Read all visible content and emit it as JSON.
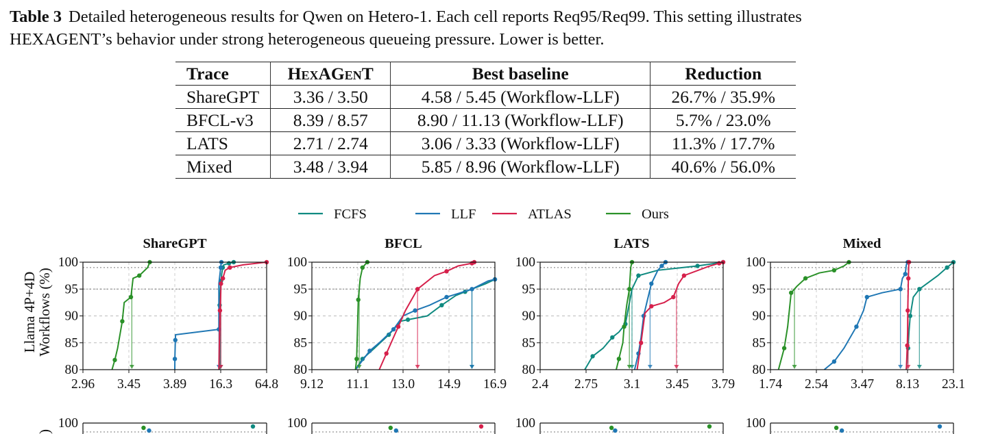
{
  "caption": {
    "label": "Table 3",
    "text": "Detailed heterogeneous results for Qwen on Hetero-1. Each cell reports Req95/Req99. This setting illustrates",
    "line2_prefix": "H",
    "line2_sc": "EXAG",
    "line2_mid": "EN",
    "line2_rest": "T’s behavior under strong heterogeneous queueing pressure. Lower is better."
  },
  "table": {
    "headers": [
      "Trace",
      "HexAGenT",
      "Best baseline",
      "Reduction"
    ],
    "rows": [
      [
        "ShareGPT",
        "3.36 / 3.50",
        "4.58 / 5.45 (Workflow-LLF)",
        "26.7% / 35.9%"
      ],
      [
        "BFCL-v3",
        "8.39 / 8.57",
        "8.90 / 11.13 (Workflow-LLF)",
        "5.7% / 23.0%"
      ],
      [
        "LATS",
        "2.71 / 2.74",
        "3.06 / 3.33 (Workflow-LLF)",
        "11.3% / 17.7%"
      ],
      [
        "Mixed",
        "3.48 / 3.94",
        "5.85 / 8.96 (Workflow-LLF)",
        "40.6% / 56.0%"
      ]
    ]
  },
  "legend": [
    {
      "name": "FCFS",
      "color": "#0f8a80"
    },
    {
      "name": "LLF",
      "color": "#1f77b4"
    },
    {
      "name": "ATLAS",
      "color": "#d6204b"
    },
    {
      "name": "Ours",
      "color": "#2a9128"
    }
  ],
  "ylabel_line1": "Llama 4P+4D",
  "ylabel_line2": "Workflows (%)",
  "chart_data": [
    {
      "type": "line",
      "title": "ShareGPT",
      "ylabel": "Llama 4P+4D Workflows (%)",
      "xticks": [
        "2.96",
        "3.45",
        "3.89",
        "16.3",
        "64.8"
      ],
      "yticks": [
        "80",
        "85",
        "90",
        "95",
        "100"
      ],
      "ylim": [
        80,
        100
      ],
      "x_axis": "broken (piecewise tick positions)",
      "series": [
        {
          "name": "FCFS",
          "points": [
            [
              16.0,
              80
            ],
            [
              16.0,
              92
            ],
            [
              16.1,
              94
            ],
            [
              16.6,
              96.5
            ],
            [
              17.5,
              98
            ],
            [
              18.5,
              99
            ],
            [
              19.6,
              99.5
            ],
            [
              25.0,
              99.8
            ],
            [
              30.0,
              100
            ]
          ]
        },
        {
          "name": "LLF",
          "points": [
            [
              3.89,
              80
            ],
            [
              3.91,
              82
            ],
            [
              4.0,
              84.5
            ],
            [
              4.03,
              85.5
            ],
            [
              4.1,
              86.5
            ],
            [
              15.8,
              87.5
            ],
            [
              15.8,
              96
            ],
            [
              16.3,
              99
            ],
            [
              16.7,
              99.8
            ],
            [
              17.0,
              100
            ]
          ]
        },
        {
          "name": "ATLAS",
          "points": [
            [
              15.8,
              80
            ],
            [
              16.1,
              91
            ],
            [
              16.3,
              94
            ],
            [
              16.6,
              96
            ],
            [
              17.3,
              96.5
            ],
            [
              18.6,
              97
            ],
            [
              21.0,
              98.5
            ],
            [
              26.0,
              99
            ],
            [
              40.0,
              99.5
            ],
            [
              64.8,
              100
            ]
          ]
        },
        {
          "name": "Ours",
          "points": [
            [
              3.27,
              80
            ],
            [
              3.3,
              81.8
            ],
            [
              3.33,
              84
            ],
            [
              3.38,
              89
            ],
            [
              3.4,
              92.5
            ],
            [
              3.47,
              93.5
            ],
            [
              3.49,
              97
            ],
            [
              3.55,
              97.5
            ],
            [
              3.63,
              99
            ],
            [
              3.65,
              100
            ]
          ]
        }
      ]
    },
    {
      "type": "line",
      "title": "BFCL",
      "xticks": [
        "9.12",
        "11.1",
        "13.0",
        "14.9",
        "16.9"
      ],
      "yticks": [
        "80",
        "85",
        "90",
        "95",
        "100"
      ],
      "ylim": [
        80,
        100
      ],
      "series": [
        {
          "name": "FCFS",
          "points": [
            [
              11.0,
              80
            ],
            [
              11.3,
              82
            ],
            [
              11.8,
              84
            ],
            [
              12.4,
              86.5
            ],
            [
              12.9,
              89
            ],
            [
              13.2,
              89.3
            ],
            [
              14.0,
              90
            ],
            [
              14.6,
              92
            ],
            [
              15.2,
              93.8
            ],
            [
              15.6,
              94.5
            ],
            [
              16.5,
              96
            ],
            [
              16.9,
              96.8
            ]
          ]
        },
        {
          "name": "LLF",
          "points": [
            [
              11.0,
              80
            ],
            [
              11.6,
              83.5
            ],
            [
              12.0,
              85
            ],
            [
              12.6,
              87.5
            ],
            [
              13.0,
              90
            ],
            [
              13.5,
              91
            ],
            [
              14.1,
              92
            ],
            [
              14.8,
              93.5
            ],
            [
              15.4,
              94.3
            ],
            [
              15.9,
              95
            ],
            [
              16.6,
              96.5
            ],
            [
              16.9,
              96.8
            ]
          ]
        },
        {
          "name": "ATLAS",
          "points": [
            [
              12.0,
              80
            ],
            [
              12.3,
              83
            ],
            [
              12.6,
              86
            ],
            [
              12.8,
              88
            ],
            [
              13.1,
              91
            ],
            [
              13.6,
              95
            ],
            [
              14.3,
              97.5
            ],
            [
              14.8,
              98.3
            ],
            [
              15.3,
              99.3
            ],
            [
              15.9,
              99.8
            ],
            [
              16.0,
              100
            ]
          ]
        },
        {
          "name": "Ours",
          "points": [
            [
              11.0,
              80
            ],
            [
              11.05,
              82
            ],
            [
              11.08,
              86.5
            ],
            [
              11.12,
              93
            ],
            [
              11.2,
              97
            ],
            [
              11.3,
              99
            ],
            [
              11.45,
              99.8
            ],
            [
              11.5,
              100
            ]
          ]
        }
      ]
    },
    {
      "type": "line",
      "title": "LATS",
      "xticks": [
        "2.4",
        "2.75",
        "3.1",
        "3.45",
        "3.79"
      ],
      "yticks": [
        "80",
        "85",
        "90",
        "95",
        "100"
      ],
      "ylim": [
        80,
        100
      ],
      "series": [
        {
          "name": "FCFS",
          "points": [
            [
              2.74,
              80
            ],
            [
              2.8,
              82.5
            ],
            [
              2.88,
              84
            ],
            [
              2.95,
              86
            ],
            [
              3.0,
              87
            ],
            [
              3.05,
              88.5
            ],
            [
              3.1,
              95
            ],
            [
              3.15,
              97.5
            ],
            [
              3.3,
              98.5
            ],
            [
              3.6,
              99.3
            ],
            [
              3.79,
              100
            ]
          ]
        },
        {
          "name": "LLF",
          "points": [
            [
              3.12,
              80
            ],
            [
              3.15,
              83
            ],
            [
              3.17,
              86
            ],
            [
              3.19,
              90
            ],
            [
              3.22,
              93
            ],
            [
              3.25,
              96
            ],
            [
              3.3,
              98.5
            ],
            [
              3.33,
              99.3
            ],
            [
              3.36,
              100
            ]
          ]
        },
        {
          "name": "ATLAS",
          "points": [
            [
              3.14,
              80
            ],
            [
              3.17,
              85
            ],
            [
              3.2,
              90.5
            ],
            [
              3.25,
              91.8
            ],
            [
              3.35,
              92.5
            ],
            [
              3.42,
              93.5
            ],
            [
              3.46,
              96
            ],
            [
              3.5,
              97.5
            ],
            [
              3.68,
              99.2
            ],
            [
              3.76,
              99.8
            ],
            [
              3.79,
              100
            ]
          ]
        },
        {
          "name": "Ours",
          "points": [
            [
              2.98,
              80
            ],
            [
              3.0,
              82
            ],
            [
              3.03,
              85
            ],
            [
              3.04,
              88
            ],
            [
              3.06,
              92
            ],
            [
              3.08,
              95
            ],
            [
              3.09,
              99
            ],
            [
              3.1,
              100
            ]
          ]
        }
      ]
    },
    {
      "type": "line",
      "title": "Mixed",
      "xticks": [
        "1.74",
        "2.54",
        "3.47",
        "8.13",
        "23.1"
      ],
      "yticks": [
        "80",
        "85",
        "90",
        "95",
        "100"
      ],
      "ylim": [
        80,
        100
      ],
      "x_axis": "broken (piecewise tick positions)",
      "series": [
        {
          "name": "FCFS",
          "points": [
            [
              8.0,
              80
            ],
            [
              8.3,
              84
            ],
            [
              8.6,
              87
            ],
            [
              9.0,
              90
            ],
            [
              10.0,
              93.5
            ],
            [
              12.0,
              95
            ],
            [
              18.0,
              97.5
            ],
            [
              21.0,
              99
            ],
            [
              23.1,
              100
            ]
          ]
        },
        {
          "name": "LLF",
          "points": [
            [
              2.7,
              80
            ],
            [
              2.9,
              81.5
            ],
            [
              3.1,
              84
            ],
            [
              3.35,
              88
            ],
            [
              3.6,
              91
            ],
            [
              3.95,
              93.5
            ],
            [
              5.5,
              94.3
            ],
            [
              7.4,
              95
            ],
            [
              7.6,
              97
            ],
            [
              7.9,
              97.8
            ],
            [
              8.0,
              99.5
            ],
            [
              8.2,
              100
            ]
          ]
        },
        {
          "name": "ATLAS",
          "points": [
            [
              8.0,
              80
            ],
            [
              8.1,
              84.5
            ],
            [
              8.15,
              87
            ],
            [
              8.2,
              91
            ],
            [
              8.3,
              94
            ],
            [
              8.4,
              97
            ],
            [
              8.5,
              99.3
            ],
            [
              8.6,
              100
            ]
          ]
        },
        {
          "name": "Ours",
          "points": [
            [
              1.88,
              80
            ],
            [
              1.98,
              84
            ],
            [
              2.04,
              88
            ],
            [
              2.1,
              94.3
            ],
            [
              2.2,
              95.5
            ],
            [
              2.35,
              97
            ],
            [
              2.6,
              98
            ],
            [
              2.9,
              98.5
            ],
            [
              3.1,
              99.3
            ],
            [
              3.2,
              100
            ]
          ]
        }
      ]
    },
    {
      "type": "line",
      "title": "",
      "yticks": [
        "100"
      ],
      "note": "second row of panels, cropped at image bottom",
      "series": []
    }
  ]
}
